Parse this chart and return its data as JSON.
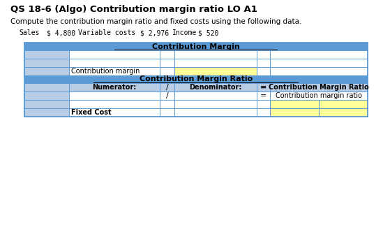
{
  "title": "QS 18-6 (Algo) Contribution margin ratio LO A1",
  "subtitle": "Compute the contribution margin ratio and fixed costs using the following data.",
  "sales_label": "Sales",
  "sales_value": "$ 4,800",
  "var_costs_label": "Variable costs",
  "var_costs_value": "$ 2,976",
  "income_label": "Income",
  "income_value": "$ 520",
  "blue_header_color": "#5B9BD5",
  "yellow_fill": "#FFFF99",
  "gray_cell": "#B8CCE4",
  "white_cell": "#FFFFFF",
  "border_color": "#5B9BD5",
  "section1_header": "Contribution Margin",
  "section2_header": "Contribution Margin Ratio",
  "label_contribution_margin": "Contribution margin",
  "label_numerator": "Numerator:",
  "label_denominator": "Denominator:",
  "label_equals": "=",
  "label_slash": "/",
  "label_cm_ratio_header": "Contribution Margin Ratio",
  "label_cm_ratio": "Contribution margin ratio",
  "label_fixed_cost": "Fixed Cost",
  "c0": 35,
  "c1": 100,
  "c2": 230,
  "c3": 252,
  "c4": 370,
  "c5": 390,
  "c5a": 460,
  "c6": 530,
  "s1h_t": 264,
  "s1h_b": 253,
  "s1r1_t": 253,
  "s1r1_b": 241,
  "s1r2_t": 241,
  "s1r2_b": 229,
  "s1cm_t": 229,
  "s1cm_b": 217,
  "s2h_t": 217,
  "s2h_b": 206,
  "s2lb_t": 206,
  "s2lb_b": 194,
  "s2r1_t": 194,
  "s2r1_b": 182,
  "s2r2_t": 182,
  "s2r2_b": 170,
  "s2r3_t": 170,
  "s2r3_b": 158
}
